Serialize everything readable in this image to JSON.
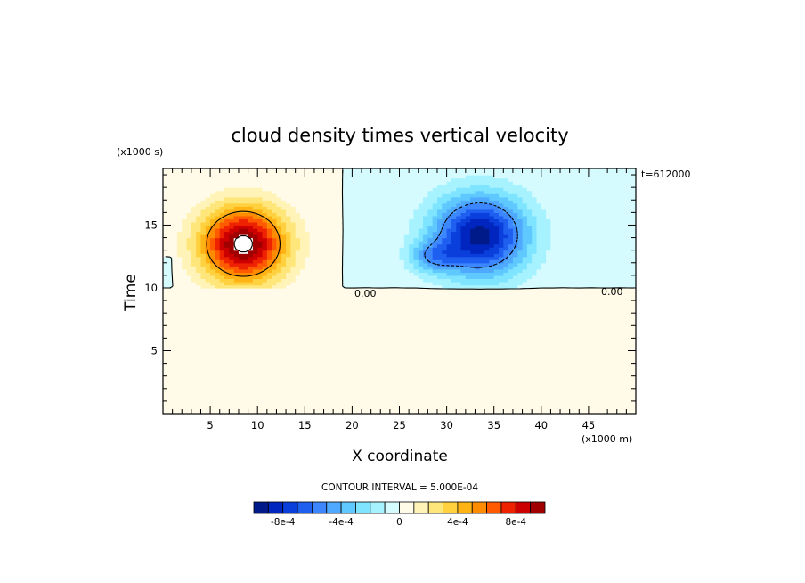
{
  "chart_data": {
    "type": "heatmap",
    "title": "cloud density times vertical velocity",
    "xlabel": "X coordinate",
    "ylabel": "Time",
    "x_units": "(x1000 m)",
    "y_units": "(x1000 s)",
    "xlim": [
      0,
      50
    ],
    "ylim": [
      0,
      19.5
    ],
    "x_ticks": [
      5,
      10,
      15,
      20,
      25,
      30,
      35,
      40,
      45
    ],
    "y_ticks": [
      5,
      10,
      15
    ],
    "time_label": "t=612000",
    "contour_interval_text": "CONTOUR INTERVAL = 5.000E-04",
    "zero_contour_labels": [
      "0.00",
      "0.00"
    ],
    "colorbar": {
      "levels": [
        -0.001,
        -0.0009,
        -0.0008,
        -0.0007,
        -0.0006,
        -0.0005,
        -0.0004,
        -0.0003,
        -0.0002,
        -0.0001,
        0,
        0.0001,
        0.0002,
        0.0003,
        0.0004,
        0.0005,
        0.0006,
        0.0007,
        0.0008,
        0.0009,
        0.001
      ],
      "colors": [
        "#001a8a",
        "#0026bf",
        "#0a3fdc",
        "#1f5ff0",
        "#3c86ff",
        "#4ea9ff",
        "#5fc8ff",
        "#7fe4ff",
        "#a6f2ff",
        "#d6fbff",
        "#fffbe8",
        "#fff3b8",
        "#ffe67a",
        "#ffd13f",
        "#ffb314",
        "#ff8c00",
        "#ff5a00",
        "#ee2200",
        "#cc0000",
        "#a00000"
      ],
      "tick_labels": [
        "-8e-4",
        "-4e-4",
        "0",
        "4e-4",
        "8e-4"
      ],
      "tick_values": [
        -0.0008,
        -0.0004,
        0,
        0.0004,
        0.0008
      ]
    },
    "positive_cell": {
      "center_x": 8.5,
      "center_y": 13.5,
      "sigma_x": 4.5,
      "sigma_y": 3.0,
      "peak": 0.00105
    },
    "negative_cell": {
      "center_x": 33.5,
      "center_y": 14.2,
      "sigma_x": 5.0,
      "sigma_y": 3.2,
      "peak": -0.00095
    },
    "secondary_negative_cell": {
      "center_x": 28.5,
      "center_y": 12.5,
      "sigma_x": 2.5,
      "sigma_y": 1.2,
      "peak": -0.00035
    },
    "background_positive": 3e-05,
    "cloud_base": 10,
    "cloud_top_right": 19.5,
    "left_edge_patch": {
      "x_max": 1.2,
      "y_min": 10,
      "y_max": 12.5,
      "value": -3e-05
    }
  }
}
